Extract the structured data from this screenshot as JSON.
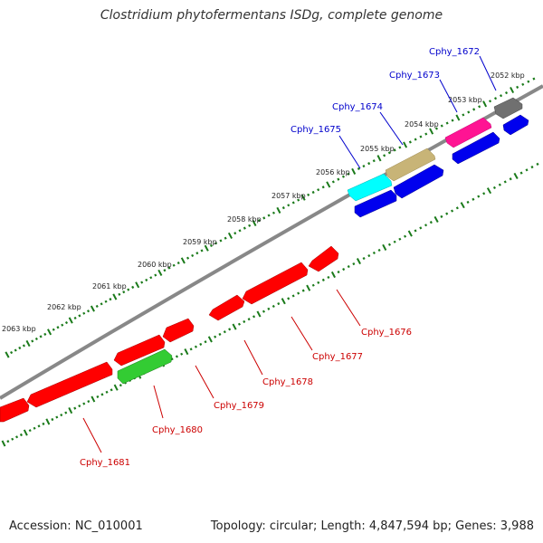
{
  "title": "Clostridium phytofermentans ISDg, complete genome",
  "accession_text": "Accession: NC_010001",
  "summary_text": "Topology: circular; Length: 4,847,594 bp; Genes: 3,988",
  "colors": {
    "backbone": "#808080",
    "tick": "#1a7a1a",
    "label_upper": "#0000cc",
    "label_lower": "#cc0000",
    "red": "#ff0000",
    "blue": "#0000ee",
    "cyan": "#00ffff",
    "khaki": "#c8b477",
    "magenta": "#ff1493",
    "gray": "#707070",
    "green": "#33cc33"
  },
  "kbp_labels": [
    "2052 kbp",
    "2053 kbp",
    "2054 kbp",
    "2055 kbp",
    "2056 kbp",
    "2057 kbp",
    "2058 kbp",
    "2059 kbp",
    "2060 kbp",
    "2061 kbp",
    "2062 kbp",
    "2063 kbp"
  ],
  "gene_labels": [
    {
      "text": "Cphy_1672",
      "group": "upper"
    },
    {
      "text": "Cphy_1673",
      "group": "upper"
    },
    {
      "text": "Cphy_1674",
      "group": "upper"
    },
    {
      "text": "Cphy_1675",
      "group": "upper"
    },
    {
      "text": "Cphy_1676",
      "group": "lower"
    },
    {
      "text": "Cphy_1677",
      "group": "lower"
    },
    {
      "text": "Cphy_1678",
      "group": "lower"
    },
    {
      "text": "Cphy_1679",
      "group": "lower"
    },
    {
      "text": "Cphy_1680",
      "group": "lower"
    },
    {
      "text": "Cphy_1681",
      "group": "lower"
    }
  ]
}
